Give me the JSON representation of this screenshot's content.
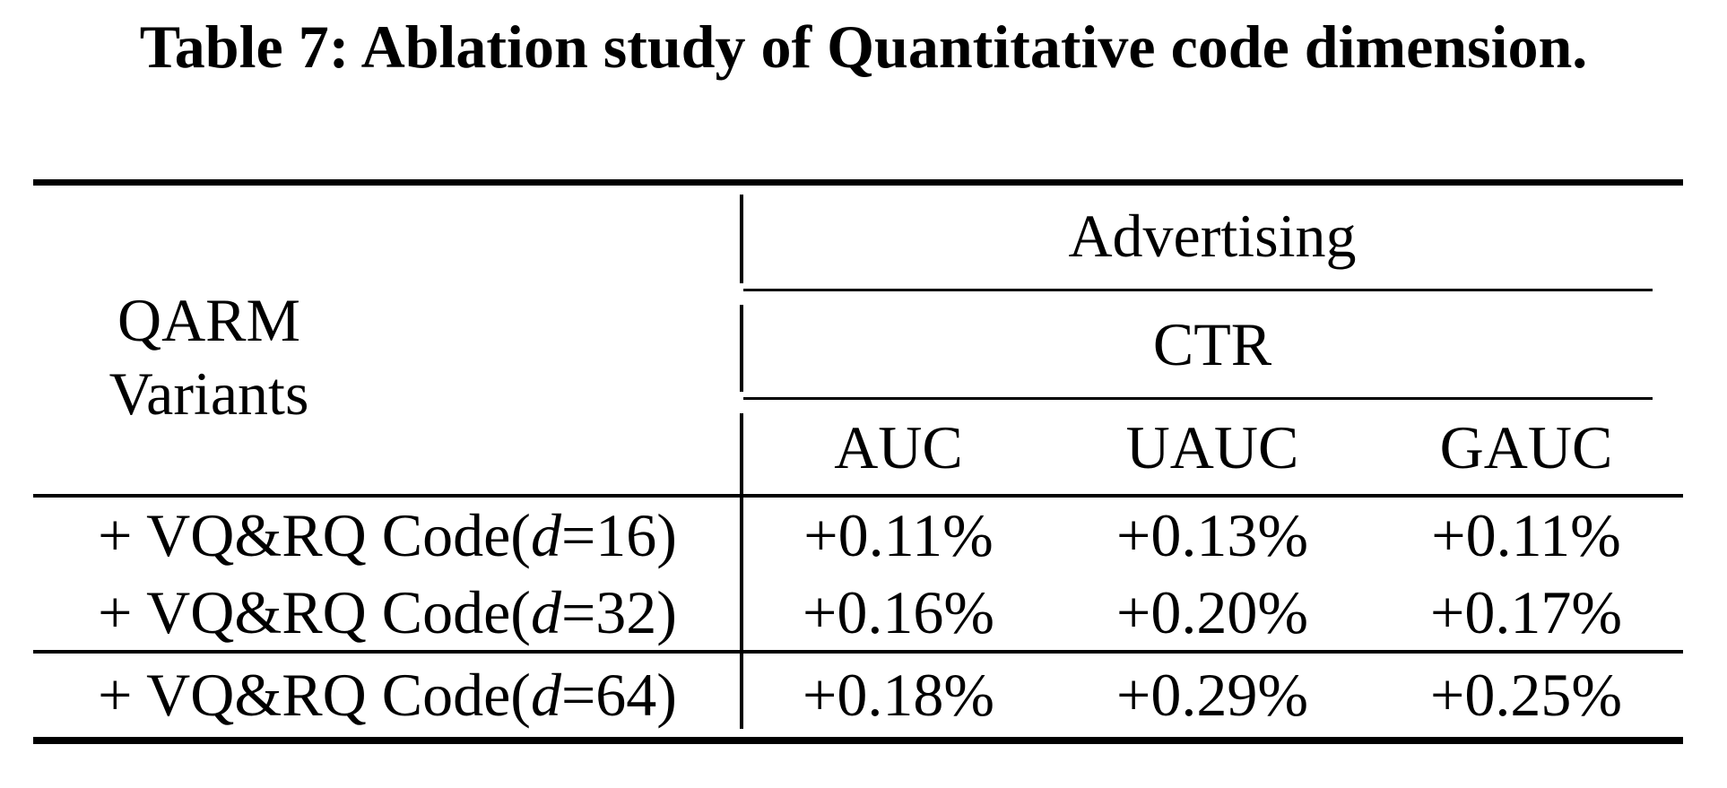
{
  "caption": "Table 7: Ablation study of Quantitative code dimension.",
  "table": {
    "row_header": {
      "line1": "QARM",
      "line2": "Variants"
    },
    "group_header": "Advertising",
    "metric_header": "CTR",
    "columns": [
      "AUC",
      "UAUC",
      "GAUC"
    ],
    "rows": [
      {
        "label_prefix": "+ VQ&RQ Code(",
        "label_var": "d",
        "label_suffix": "=16)",
        "values": [
          "+0.11%",
          "+0.13%",
          "+0.11%"
        ]
      },
      {
        "label_prefix": "+ VQ&RQ Code(",
        "label_var": "d",
        "label_suffix": "=32)",
        "values": [
          "+0.16%",
          "+0.20%",
          "+0.17%"
        ]
      },
      {
        "label_prefix": "+ VQ&RQ Code(",
        "label_var": "d",
        "label_suffix": "=64)",
        "values": [
          "+0.18%",
          "+0.29%",
          "+0.25%"
        ]
      }
    ]
  },
  "colors": {
    "text": "#000000",
    "background": "#ffffff",
    "rule": "#000000"
  },
  "chart_data": {
    "type": "table",
    "title": "Table 7: Ablation study of Quantitative code dimension.",
    "row_header_label": "QARM Variants",
    "column_group": "Advertising",
    "column_subgroup": "CTR",
    "columns": [
      "AUC",
      "UAUC",
      "GAUC"
    ],
    "rows": [
      {
        "label": "+ VQ&RQ Code(d=16)",
        "AUC": "+0.11%",
        "UAUC": "+0.13%",
        "GAUC": "+0.11%"
      },
      {
        "label": "+ VQ&RQ Code(d=32)",
        "AUC": "+0.16%",
        "UAUC": "+0.20%",
        "GAUC": "+0.17%"
      },
      {
        "label": "+ VQ&RQ Code(d=64)",
        "AUC": "+0.18%",
        "UAUC": "+0.29%",
        "GAUC": "+0.25%"
      }
    ]
  }
}
